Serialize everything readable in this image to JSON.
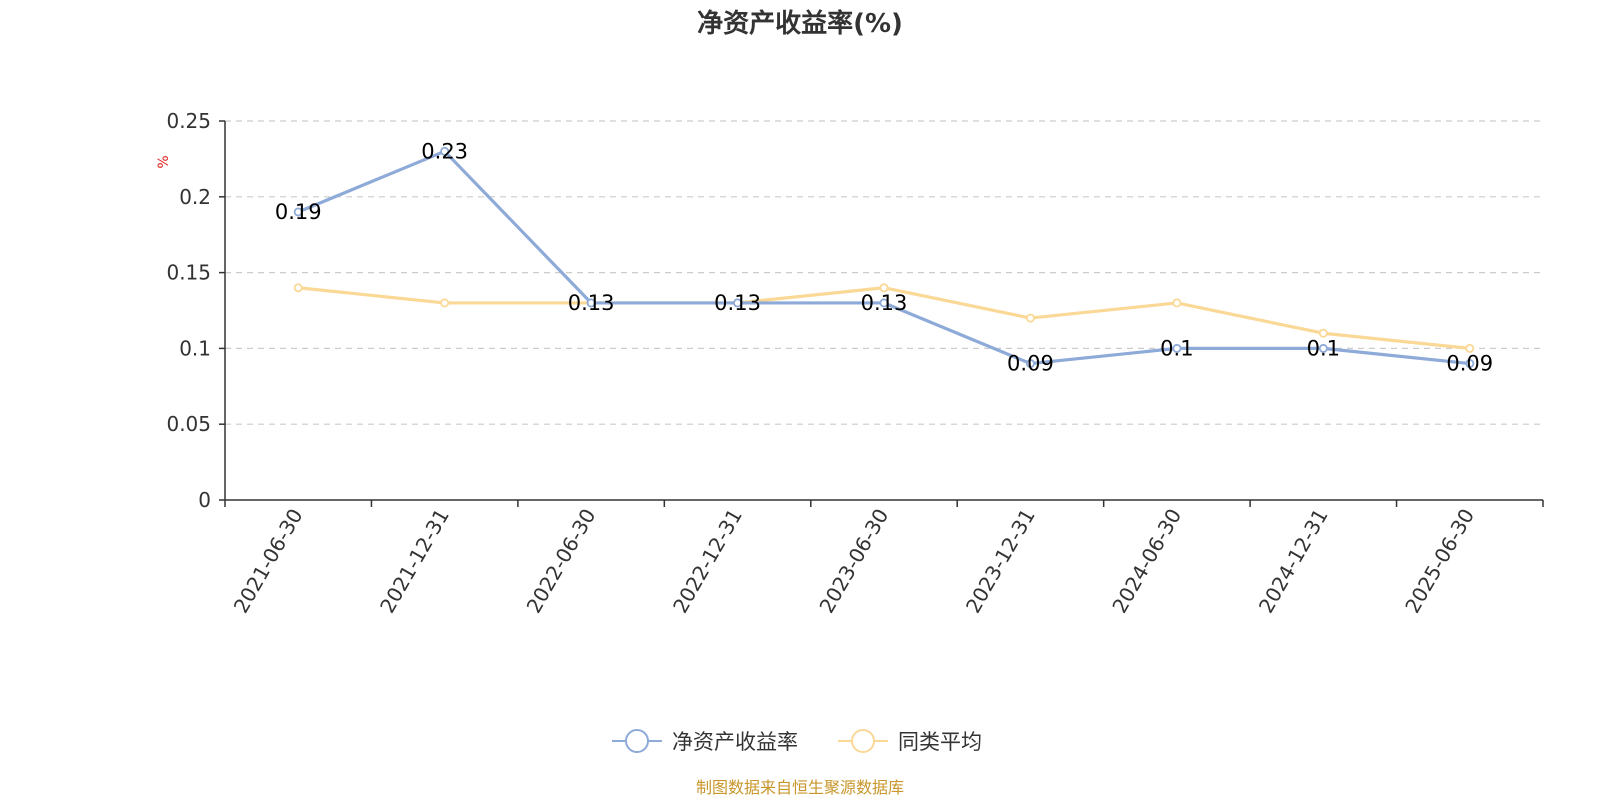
{
  "chart_data": {
    "type": "line",
    "title": "净资产收益率(%)",
    "ylabel": "%",
    "xlabel": "",
    "ylim": [
      0,
      0.25
    ],
    "yticks": [
      "0",
      "0.05",
      "0.1",
      "0.15",
      "0.2",
      "0.25"
    ],
    "categories": [
      "2021-06-30",
      "2021-12-31",
      "2022-06-30",
      "2022-12-31",
      "2023-06-30",
      "2023-12-31",
      "2024-06-30",
      "2024-12-31",
      "2025-06-30"
    ],
    "series": [
      {
        "name": "净资产收益率",
        "color": "#8eaad8",
        "values": [
          0.19,
          0.23,
          0.13,
          0.13,
          0.13,
          0.09,
          0.1,
          0.1,
          0.09
        ],
        "labels": [
          "0.19",
          "0.23",
          "0.13",
          "0.13",
          "0.13",
          "0.09",
          "0.1",
          "0.1",
          "0.09"
        ]
      },
      {
        "name": "同类平均",
        "color": "#fad896",
        "values": [
          0.14,
          0.13,
          0.13,
          0.13,
          0.14,
          0.12,
          0.13,
          0.11,
          0.1
        ]
      }
    ],
    "grid": true,
    "legend_position": "bottom-center",
    "source_note": "制图数据来自恒生聚源数据库"
  }
}
